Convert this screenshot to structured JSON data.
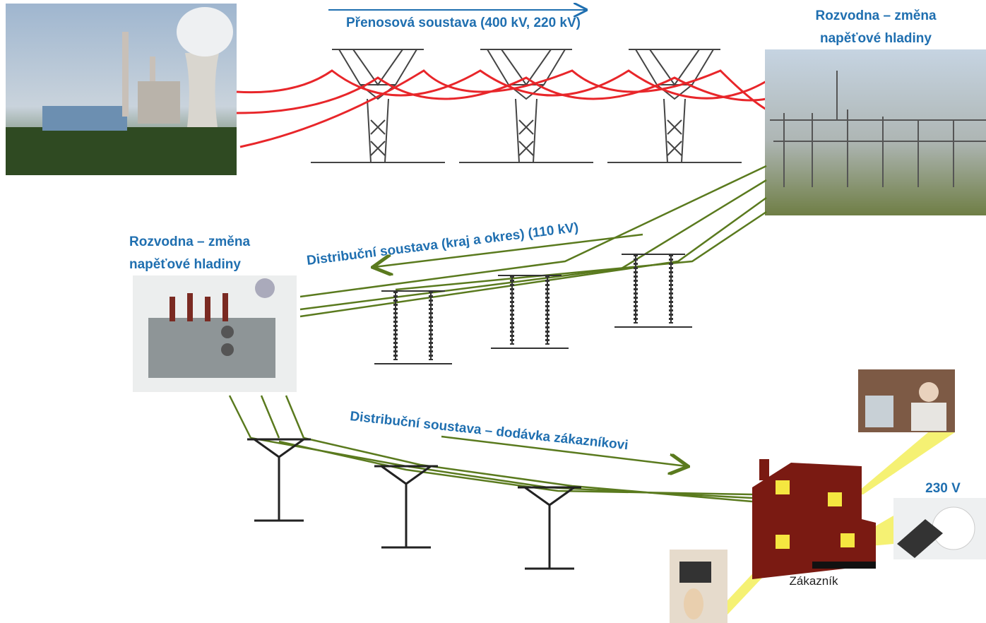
{
  "transmission": {
    "label": "Přenosová soustava (400 kV, 220 kV)"
  },
  "substation_top": {
    "lines": [
      "Rozvodna – změna",
      "napěťové hladiny"
    ]
  },
  "substation_left": {
    "lines": [
      "Rozvodna – změna",
      "napěťové hladiny"
    ]
  },
  "distribution_regional": {
    "label": "Distribuční soustava (kraj a okres) (110 kV)"
  },
  "distribution_local": {
    "label": "Distribuční soustava – dodávka zákazníkovi"
  },
  "socket": {
    "label": "230 V"
  },
  "customer": {
    "label": "Zákazník"
  }
}
